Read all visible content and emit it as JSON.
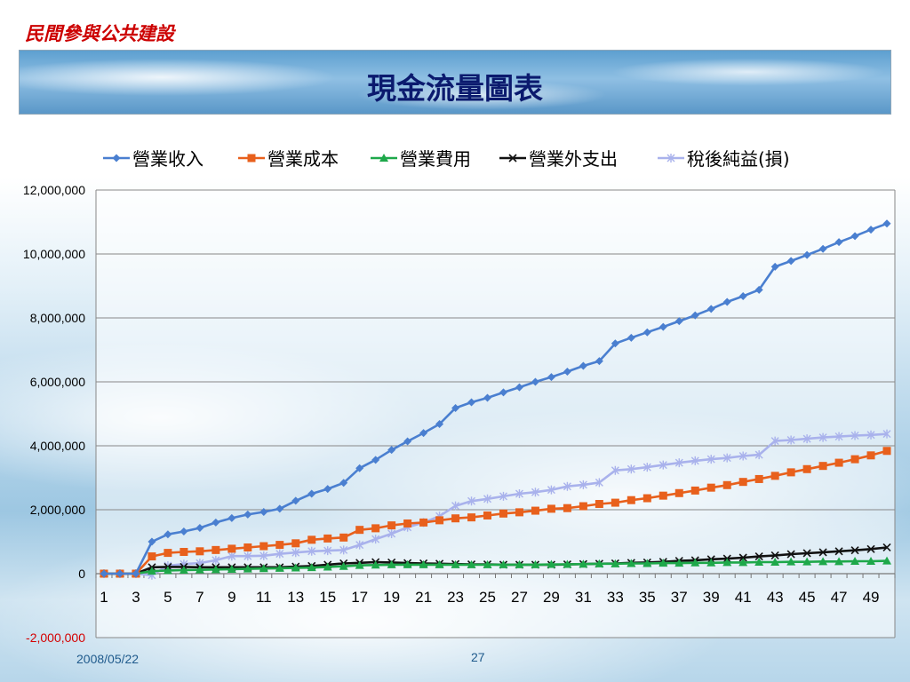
{
  "header": {
    "org_text": "民間參與公共建設",
    "title": "現金流量圖表"
  },
  "footer": {
    "date": "2008/05/22",
    "page": "27"
  },
  "chart_data": {
    "type": "line",
    "title": "",
    "xlabel": "",
    "ylabel": "",
    "ylim": [
      -2000000,
      12000000
    ],
    "yticks": [
      -2000000,
      0,
      2000000,
      4000000,
      6000000,
      8000000,
      10000000,
      12000000
    ],
    "ytick_labels": [
      "-2,000,000",
      "0",
      "2,000,000",
      "4,000,000",
      "6,000,000",
      "8,000,000",
      "10,000,000",
      "12,000,000"
    ],
    "grid": true,
    "legend_position": "top",
    "x": [
      1,
      2,
      3,
      4,
      5,
      6,
      7,
      8,
      9,
      10,
      11,
      12,
      13,
      14,
      15,
      16,
      17,
      18,
      19,
      20,
      21,
      22,
      23,
      24,
      25,
      26,
      27,
      28,
      29,
      30,
      31,
      32,
      33,
      34,
      35,
      36,
      37,
      38,
      39,
      40,
      41,
      42,
      43,
      44,
      45,
      46,
      47,
      48,
      49,
      50
    ],
    "xtick_labels": [
      "1",
      "3",
      "5",
      "7",
      "9",
      "11",
      "13",
      "15",
      "17",
      "19",
      "21",
      "23",
      "25",
      "27",
      "29",
      "31",
      "33",
      "35",
      "37",
      "39",
      "41",
      "43",
      "45",
      "47",
      "49"
    ],
    "series": [
      {
        "name": "營業收入",
        "color": "#4a7fd0",
        "marker": "diamond",
        "values": [
          0,
          0,
          0,
          1000000,
          1230000,
          1320000,
          1430000,
          1600000,
          1740000,
          1850000,
          1930000,
          2030000,
          2280000,
          2500000,
          2650000,
          2840000,
          3300000,
          3560000,
          3870000,
          4140000,
          4400000,
          4680000,
          5180000,
          5360000,
          5500000,
          5670000,
          5830000,
          6000000,
          6150000,
          6320000,
          6500000,
          6650000,
          7200000,
          7380000,
          7550000,
          7720000,
          7900000,
          8080000,
          8280000,
          8500000,
          8680000,
          8880000,
          9600000,
          9780000,
          9970000,
          10160000,
          10370000,
          10560000,
          10760000,
          10950000
        ]
      },
      {
        "name": "營業成本",
        "color": "#e8601c",
        "marker": "square",
        "values": [
          0,
          0,
          0,
          540000,
          650000,
          680000,
          700000,
          740000,
          780000,
          820000,
          860000,
          900000,
          950000,
          1060000,
          1100000,
          1130000,
          1370000,
          1420000,
          1510000,
          1570000,
          1600000,
          1670000,
          1730000,
          1760000,
          1820000,
          1880000,
          1920000,
          1970000,
          2030000,
          2050000,
          2110000,
          2180000,
          2220000,
          2300000,
          2360000,
          2440000,
          2520000,
          2600000,
          2690000,
          2770000,
          2870000,
          2960000,
          3060000,
          3170000,
          3270000,
          3370000,
          3470000,
          3580000,
          3700000,
          3840000
        ]
      },
      {
        "name": "營業費用",
        "color": "#1ea84a",
        "marker": "triangle",
        "values": [
          0,
          0,
          0,
          80000,
          100000,
          110000,
          120000,
          130000,
          140000,
          150000,
          160000,
          170000,
          180000,
          190000,
          210000,
          230000,
          260000,
          270000,
          280000,
          280000,
          280000,
          280000,
          280000,
          280000,
          280000,
          280000,
          280000,
          280000,
          290000,
          290000,
          300000,
          310000,
          310000,
          320000,
          320000,
          330000,
          330000,
          340000,
          340000,
          350000,
          350000,
          360000,
          360000,
          370000,
          370000,
          380000,
          380000,
          390000,
          390000,
          400000
        ]
      },
      {
        "name": "營業外支出",
        "color": "#111111",
        "marker": "x",
        "values": [
          0,
          0,
          0,
          200000,
          210000,
          210000,
          200000,
          200000,
          200000,
          200000,
          200000,
          200000,
          220000,
          240000,
          280000,
          320000,
          340000,
          360000,
          350000,
          330000,
          320000,
          310000,
          300000,
          290000,
          290000,
          280000,
          280000,
          280000,
          280000,
          290000,
          300000,
          310000,
          320000,
          340000,
          350000,
          370000,
          400000,
          420000,
          450000,
          470000,
          500000,
          540000,
          570000,
          610000,
          640000,
          670000,
          700000,
          730000,
          770000,
          820000
        ]
      },
      {
        "name": "稅後純益(損)",
        "color": "#a9b2ec",
        "marker": "star",
        "values": [
          0,
          0,
          0,
          -50000,
          250000,
          300000,
          330000,
          420000,
          550000,
          550000,
          560000,
          620000,
          660000,
          700000,
          720000,
          740000,
          900000,
          1080000,
          1250000,
          1450000,
          1600000,
          1800000,
          2120000,
          2270000,
          2340000,
          2420000,
          2500000,
          2550000,
          2620000,
          2730000,
          2780000,
          2850000,
          3230000,
          3270000,
          3330000,
          3400000,
          3470000,
          3530000,
          3580000,
          3620000,
          3680000,
          3720000,
          4150000,
          4180000,
          4220000,
          4260000,
          4290000,
          4320000,
          4340000,
          4370000
        ]
      }
    ]
  }
}
